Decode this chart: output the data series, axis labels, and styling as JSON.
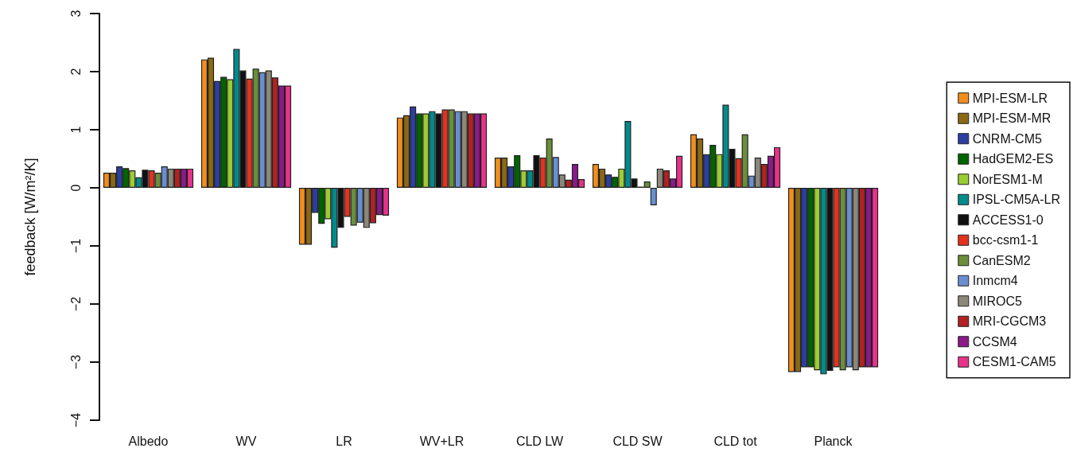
{
  "chart_data": {
    "type": "bar",
    "ylabel": "feedback [W/m²/K]",
    "categories": [
      "Albedo",
      "WV",
      "LR",
      "WV+LR",
      "CLD LW",
      "CLD SW",
      "CLD tot",
      "Planck"
    ],
    "ylim": [
      -4,
      3
    ],
    "yticks": [
      -4,
      -3,
      -2,
      -1,
      0,
      1,
      2,
      3
    ],
    "grid": false,
    "legend": "right",
    "series": [
      {
        "name": "MPI-ESM-LR",
        "color": "#f28e1c",
        "values": [
          0.26,
          2.21,
          -0.98,
          1.21,
          0.52,
          0.41,
          0.92,
          -3.17
        ]
      },
      {
        "name": "MPI-ESM-MR",
        "color": "#8b6914",
        "values": [
          0.26,
          2.24,
          -0.98,
          1.25,
          0.52,
          0.33,
          0.85,
          -3.17
        ]
      },
      {
        "name": "CNRM-CM5",
        "color": "#2b3fa0",
        "values": [
          0.37,
          1.84,
          -0.43,
          1.4,
          0.37,
          0.23,
          0.58,
          -3.09
        ]
      },
      {
        "name": "HadGEM2-ES",
        "color": "#006400",
        "values": [
          0.34,
          1.91,
          -0.62,
          1.28,
          0.56,
          0.19,
          0.74,
          -3.09
        ]
      },
      {
        "name": "NorESM1-M",
        "color": "#9acd32",
        "values": [
          0.3,
          1.87,
          -0.54,
          1.28,
          0.3,
          0.33,
          0.58,
          -3.14
        ]
      },
      {
        "name": "IPSL-CM5A-LR",
        "color": "#008b8b",
        "values": [
          0.18,
          2.39,
          -1.03,
          1.32,
          0.3,
          1.15,
          1.43,
          -3.21
        ]
      },
      {
        "name": "ACCESS1-0",
        "color": "#111111",
        "values": [
          0.31,
          2.02,
          -0.69,
          1.28,
          0.56,
          0.16,
          0.67,
          -3.15
        ]
      },
      {
        "name": "bcc-csm1-1",
        "color": "#e3321f",
        "values": [
          0.3,
          1.88,
          -0.5,
          1.35,
          0.52,
          0.02,
          0.51,
          -3.09
        ]
      },
      {
        "name": "CanESM2",
        "color": "#6b8e3b",
        "values": [
          0.26,
          2.05,
          -0.65,
          1.35,
          0.85,
          0.11,
          0.92,
          -3.14
        ]
      },
      {
        "name": "Inmcm4",
        "color": "#6a8fd0",
        "values": [
          0.37,
          1.99,
          -0.6,
          1.32,
          0.53,
          -0.3,
          0.21,
          -3.09
        ]
      },
      {
        "name": "MIROC5",
        "color": "#8c8778",
        "values": [
          0.33,
          2.02,
          -0.69,
          1.32,
          0.23,
          0.33,
          0.52,
          -3.14
        ]
      },
      {
        "name": "MRI-CGCM3",
        "color": "#b22222",
        "values": [
          0.33,
          1.9,
          -0.61,
          1.28,
          0.14,
          0.3,
          0.41,
          -3.09
        ]
      },
      {
        "name": "CCSM4",
        "color": "#8b1a8b",
        "values": [
          0.33,
          1.76,
          -0.47,
          1.28,
          0.41,
          0.16,
          0.55,
          -3.09
        ]
      },
      {
        "name": "CESM1-CAM5",
        "color": "#e8338a",
        "values": [
          0.33,
          1.76,
          -0.48,
          1.28,
          0.15,
          0.55,
          0.7,
          -3.09
        ]
      }
    ]
  }
}
